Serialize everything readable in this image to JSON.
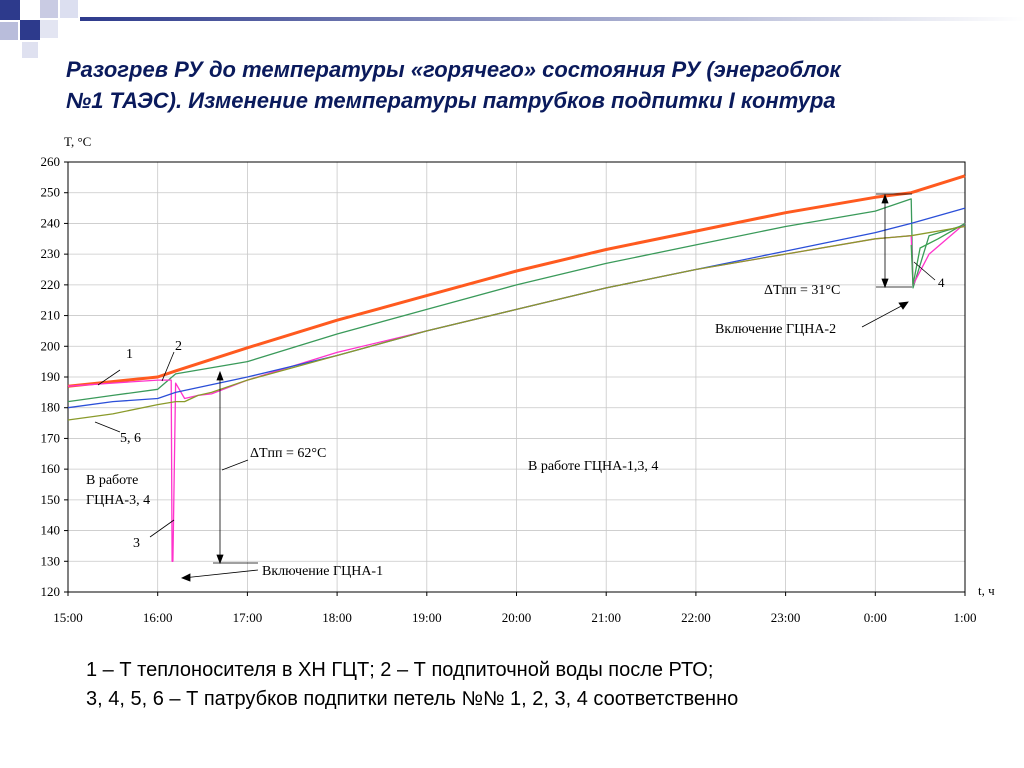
{
  "slide": {
    "title_line1": "Разогрев РУ до температуры «горячего» состояния РУ (энергоблок",
    "title_line2": "№1 ТАЭС). Изменение температуры патрубков подпитки I контура",
    "legend_line1": "1 – Т теплоносителя в ХН ГЦТ; 2 – Т подпиточной воды после РТО;",
    "legend_line2": "3, 4, 5, 6 – Т патрубков подпитки петель №№ 1, 2, 3, 4 соответственно"
  },
  "chart_data": {
    "type": "line",
    "ylabel": "T, °C",
    "xlabel": "t, ч",
    "ylim": [
      120,
      260
    ],
    "xlim": [
      0,
      10
    ],
    "yticks": [
      120,
      130,
      140,
      150,
      160,
      170,
      180,
      190,
      200,
      210,
      220,
      230,
      240,
      250,
      260
    ],
    "xtick_labels": [
      "15:00",
      "16:00",
      "17:00",
      "18:00",
      "19:00",
      "20:00",
      "21:00",
      "22:00",
      "23:00",
      "0:00",
      "1:00"
    ],
    "grid": true,
    "series": [
      {
        "name": "1",
        "color": "#ff5a1f",
        "width": 3,
        "x": [
          0,
          1,
          1.2,
          2,
          3,
          4,
          5,
          6,
          7,
          8,
          9,
          9.4,
          10
        ],
        "y": [
          187,
          190,
          192,
          199.5,
          208.5,
          216.5,
          224.5,
          231.5,
          237.5,
          243.5,
          248.5,
          250,
          255.5
        ]
      },
      {
        "name": "2",
        "color": "#3a9a5a",
        "width": 1.3,
        "x": [
          0,
          0.5,
          1,
          1.2,
          2,
          3,
          4,
          5,
          6,
          7,
          8,
          9,
          9.4,
          9.42,
          9.6,
          10
        ],
        "y": [
          182,
          184,
          186,
          191,
          195,
          204,
          212,
          220,
          227,
          233,
          239,
          244,
          248,
          219,
          236,
          239.5
        ]
      },
      {
        "name": "3",
        "color": "#ff33cc",
        "width": 1.3,
        "x": [
          0,
          0.5,
          1,
          1.15,
          1.16,
          1.17,
          1.2,
          1.3,
          1.45,
          1.6,
          2,
          3,
          4,
          5,
          6,
          7,
          8,
          9,
          9.4,
          9.42,
          9.6,
          10
        ],
        "y": [
          187,
          188,
          189,
          189,
          130,
          130,
          188,
          183,
          184,
          184.5,
          189,
          198,
          205,
          212,
          219,
          225,
          230,
          235,
          236,
          220,
          230,
          240
        ]
      },
      {
        "name": "4",
        "color": "#3aa050",
        "width": 1.3,
        "x": [
          9.4,
          9.42,
          9.5,
          9.7,
          10
        ],
        "y": [
          233,
          220,
          232,
          235,
          240
        ]
      },
      {
        "name": "5",
        "color": "#2b4fd8",
        "width": 1.3,
        "x": [
          0,
          0.5,
          1,
          1.2,
          2,
          3,
          4,
          5,
          6,
          7,
          8,
          9,
          9.4,
          10
        ],
        "y": [
          180,
          182,
          183,
          185,
          190,
          197,
          205,
          212,
          219,
          225,
          231,
          237,
          240,
          245
        ]
      },
      {
        "name": "6",
        "color": "#8a9a2a",
        "width": 1.3,
        "x": [
          0,
          0.5,
          1,
          1.2,
          1.3,
          1.45,
          1.6,
          2,
          3,
          4,
          5,
          6,
          7,
          8,
          9,
          9.4,
          10
        ],
        "y": [
          176,
          178,
          181,
          182,
          182,
          184,
          185,
          189,
          197,
          205,
          212,
          219,
          225,
          230,
          235,
          236,
          239
        ]
      }
    ],
    "annotations": {
      "label_1": "1",
      "label_2": "2",
      "label_3": "3",
      "label_4": "4",
      "label_56": "5, 6",
      "note_hcna34_line1": "В работе",
      "note_hcna34_line2": "ГЦНА-3, 4",
      "note_hcna134": "В работе ГЦНА-1,3, 4",
      "note_dt62": "ΔTпп = 62°C",
      "note_dt31": "ΔTпп = 31°C",
      "note_on1": "Включение ГЦНА-1",
      "note_on2": "Включение ГЦНА-2"
    }
  }
}
